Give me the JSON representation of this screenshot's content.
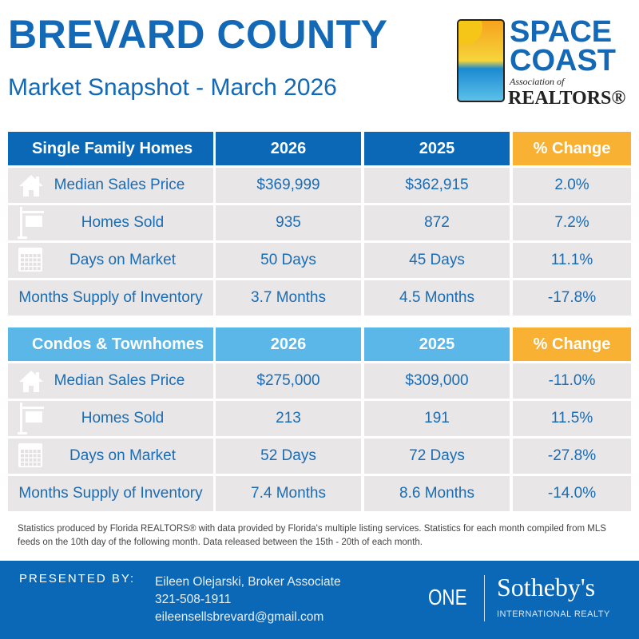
{
  "header": {
    "title": "BREVARD COUNTY",
    "subtitle": "Market Snapshot - March 2026"
  },
  "logo": {
    "line1": "SPACE",
    "line2": "COAST",
    "line3": "Association of",
    "line4": "REALTORS®"
  },
  "colors": {
    "dark_blue": "#0b68b6",
    "light_blue": "#5ab7e8",
    "orange": "#f8b133",
    "row_gray": "#e8e6e6",
    "text_blue": "#1a6cb5"
  },
  "tables": [
    {
      "title": "Single Family Homes",
      "col_2026": "2026",
      "col_2025": "2025",
      "col_change": "% Change",
      "rows": [
        {
          "icon": "house-icon",
          "label": "Median Sales Price",
          "v2026": "$369,999",
          "v2025": "$362,915",
          "change": "2.0%"
        },
        {
          "icon": "sold-sign-icon",
          "label": "Homes Sold",
          "v2026": "935",
          "v2025": "872",
          "change": "7.2%"
        },
        {
          "icon": "calendar-icon",
          "label": "Days on Market",
          "v2026": "50 Days",
          "v2025": "45 Days",
          "change": "11.1%"
        },
        {
          "icon": "",
          "label": "Months Supply of Inventory",
          "v2026": "3.7 Months",
          "v2025": "4.5 Months",
          "change": "-17.8%"
        }
      ]
    },
    {
      "title": "Condos & Townhomes",
      "col_2026": "2026",
      "col_2025": "2025",
      "col_change": "% Change",
      "rows": [
        {
          "icon": "house-icon",
          "label": "Median Sales Price",
          "v2026": "$275,000",
          "v2025": "$309,000",
          "change": "-11.0%"
        },
        {
          "icon": "sold-sign-icon",
          "label": "Homes Sold",
          "v2026": "213",
          "v2025": "191",
          "change": "11.5%"
        },
        {
          "icon": "calendar-icon",
          "label": "Days on Market",
          "v2026": "52 Days",
          "v2025": "72 Days",
          "change": "-27.8%"
        },
        {
          "icon": "",
          "label": "Months Supply of Inventory",
          "v2026": "7.4 Months",
          "v2025": "8.6 Months",
          "change": "-14.0%"
        }
      ]
    }
  ],
  "note": "Statistics produced by Florida REALTORS® with data provided by Florida's multiple listing services. Statistics for each month compiled from MLS feeds on the 10th day of the following month. Data released between the 15th - 20th of each month.",
  "footer": {
    "presented_by": "PRESENTED BY:",
    "name": "Eileen Olejarski, Broker Associate",
    "phone": "321-508-1911",
    "email": "eileensellsbrevard@gmail.com",
    "brand_one": "ONE",
    "brand_name": "Sotheby's",
    "brand_sub": "INTERNATIONAL REALTY"
  }
}
